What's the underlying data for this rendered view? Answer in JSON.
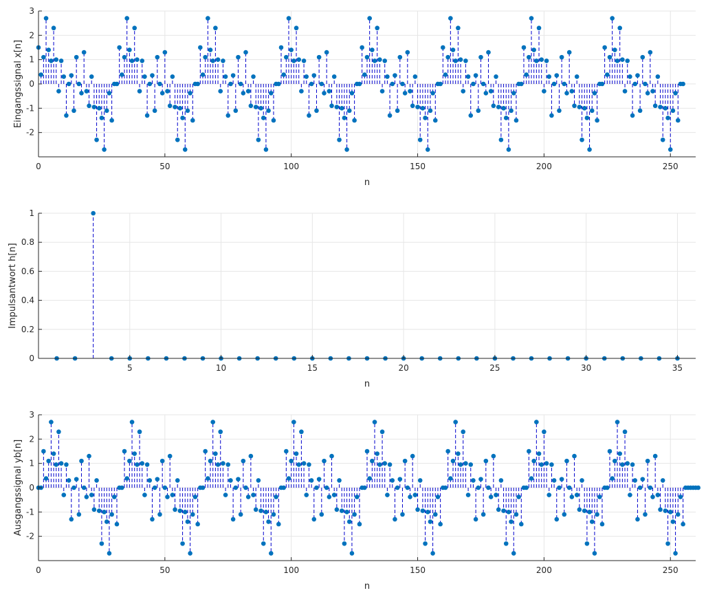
{
  "figure": {
    "background": "#ffffff",
    "stem_color": "#0000cc",
    "marker_color": "#0072bd",
    "axis_color": "#262626",
    "grid_color": "#e6e6e6"
  },
  "chart_data": [
    {
      "type": "scatter",
      "style": "stem",
      "title": "",
      "xlabel": "n",
      "ylabel": "Eingangssignal x[n]",
      "xlim": [
        0,
        260
      ],
      "ylim": [
        -3,
        3
      ],
      "xticks": [
        0,
        50,
        100,
        150,
        200,
        250
      ],
      "yticks": [
        -2,
        -1,
        0,
        1,
        2,
        3
      ],
      "grid": true,
      "x_start": 0,
      "period": 32,
      "periods": 8,
      "period_values": [
        1.5,
        0.38,
        1.1,
        2.7,
        1.4,
        0.95,
        2.3,
        1.0,
        -0.3,
        0.95,
        0.3,
        -1.3,
        0.0,
        0.35,
        -1.1,
        1.1,
        0.0,
        -0.38,
        1.3,
        -0.3,
        -0.9,
        0.3,
        -0.95,
        -2.3,
        -1.0,
        -1.4,
        -2.7,
        -1.1,
        -0.38,
        -1.5,
        0.0,
        0.0
      ]
    },
    {
      "type": "scatter",
      "style": "stem",
      "title": "",
      "xlabel": "n",
      "ylabel": "Impulsantwort h[n]",
      "xlim": [
        0,
        36
      ],
      "ylim": [
        0,
        1
      ],
      "xticks": [
        5,
        10,
        15,
        20,
        25,
        30,
        35
      ],
      "yticks": [
        0,
        0.2,
        0.4,
        0.6,
        0.8,
        1
      ],
      "grid": true,
      "x": [
        1,
        2,
        3,
        4,
        5,
        6,
        7,
        8,
        9,
        10,
        11,
        12,
        13,
        14,
        15,
        16,
        17,
        18,
        19,
        20,
        21,
        22,
        23,
        24,
        25,
        26,
        27,
        28,
        29,
        30,
        31,
        32,
        33,
        34,
        35
      ],
      "y": [
        0,
        0,
        1,
        0,
        0,
        0,
        0,
        0,
        0,
        0,
        0,
        0,
        0,
        0,
        0,
        0,
        0,
        0,
        0,
        0,
        0,
        0,
        0,
        0,
        0,
        0,
        0,
        0,
        0,
        0,
        0,
        0,
        0,
        0,
        0
      ]
    },
    {
      "type": "scatter",
      "style": "stem",
      "title": "",
      "xlabel": "n",
      "ylabel": "Ausgangssignal yb[n]",
      "xlim": [
        0,
        260
      ],
      "ylim": [
        -3,
        3
      ],
      "xticks": [
        0,
        50,
        100,
        150,
        200,
        250
      ],
      "yticks": [
        -2,
        -1,
        0,
        1,
        2,
        3
      ],
      "grid": true,
      "x_start": 0,
      "lead_zeros": 2,
      "trail_zeros": 4,
      "period": 32,
      "periods": 8,
      "period_values": [
        1.5,
        0.38,
        1.1,
        2.7,
        1.4,
        0.95,
        2.3,
        1.0,
        -0.3,
        0.95,
        0.3,
        -1.3,
        0.0,
        0.35,
        -1.1,
        1.1,
        0.0,
        -0.38,
        1.3,
        -0.3,
        -0.9,
        0.3,
        -0.95,
        -2.3,
        -1.0,
        -1.4,
        -2.7,
        -1.1,
        -0.38,
        -1.5,
        0.0,
        0.0
      ]
    }
  ]
}
